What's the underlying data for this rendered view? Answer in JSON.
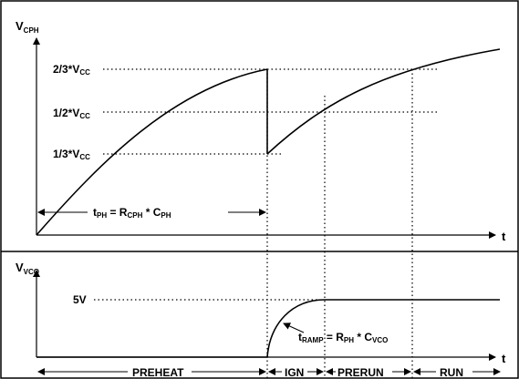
{
  "top_plot": {
    "y_axis_main": "V",
    "y_axis_sub": "CPH",
    "level_high": {
      "main": "2/3*V",
      "sub": "CC"
    },
    "level_mid": {
      "main": "1/2*V",
      "sub": "CC"
    },
    "level_low": {
      "main": "1/3*V",
      "sub": "CC"
    },
    "x_axis": "t",
    "time_constant": {
      "prefix": "t",
      "prefix_sub": "PH",
      "eq": " = R",
      "r_sub": "CPH",
      "mul": " * C",
      "c_sub": "PH"
    }
  },
  "bottom_plot": {
    "y_axis_main": "V",
    "y_axis_sub": "VCO",
    "level": "5V",
    "x_axis": "t",
    "time_constant": {
      "prefix": "t",
      "prefix_sub": "RAMP",
      "eq": " = R",
      "r_sub": "PH",
      "mul": " * C",
      "c_sub": "VCO"
    }
  },
  "phases": {
    "preheat": "PREHEAT",
    "ign": "IGN",
    "prerun": "PRERUN",
    "run": "RUN"
  }
}
